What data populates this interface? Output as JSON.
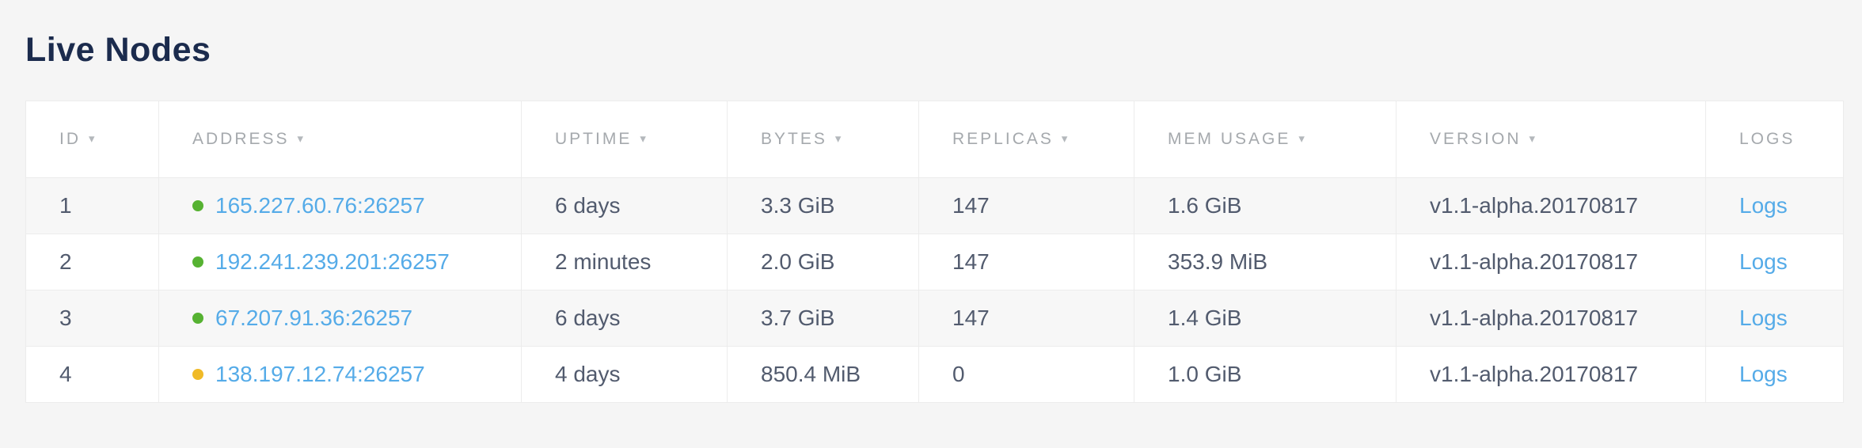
{
  "page": {
    "title": "Live Nodes"
  },
  "table": {
    "sort_icon": "▾",
    "columns": [
      {
        "key": "id",
        "label": "ID",
        "sortable": true
      },
      {
        "key": "address",
        "label": "ADDRESS",
        "sortable": true
      },
      {
        "key": "uptime",
        "label": "UPTIME",
        "sortable": true
      },
      {
        "key": "bytes",
        "label": "BYTES",
        "sortable": true
      },
      {
        "key": "replicas",
        "label": "REPLICAS",
        "sortable": true
      },
      {
        "key": "mem_usage",
        "label": "MEM USAGE",
        "sortable": true
      },
      {
        "key": "version",
        "label": "VERSION",
        "sortable": true
      },
      {
        "key": "logs",
        "label": "LOGS",
        "sortable": false
      }
    ],
    "rows": [
      {
        "id": "1",
        "status": "healthy",
        "status_color": "#56b232",
        "address": "165.227.60.76:26257",
        "uptime": "6 days",
        "bytes": "3.3 GiB",
        "replicas": "147",
        "mem_usage": "1.6 GiB",
        "version": "v1.1-alpha.20170817",
        "logs_label": "Logs"
      },
      {
        "id": "2",
        "status": "healthy",
        "status_color": "#56b232",
        "address": "192.241.239.201:26257",
        "uptime": "2 minutes",
        "bytes": "2.0 GiB",
        "replicas": "147",
        "mem_usage": "353.9 MiB",
        "version": "v1.1-alpha.20170817",
        "logs_label": "Logs"
      },
      {
        "id": "3",
        "status": "healthy",
        "status_color": "#56b232",
        "address": "67.207.91.36:26257",
        "uptime": "6 days",
        "bytes": "3.7 GiB",
        "replicas": "147",
        "mem_usage": "1.4 GiB",
        "version": "v1.1-alpha.20170817",
        "logs_label": "Logs"
      },
      {
        "id": "4",
        "status": "warning",
        "status_color": "#f0ba27",
        "address": "138.197.12.74:26257",
        "uptime": "4 days",
        "bytes": "850.4 MiB",
        "replicas": "0",
        "mem_usage": "1.0 GiB",
        "version": "v1.1-alpha.20170817",
        "logs_label": "Logs"
      }
    ],
    "colors": {
      "title_text": "#1b2b4d",
      "header_text": "#a5a9ad",
      "cell_text": "#525b6e",
      "link": "#55abe8",
      "healthy_dot": "#56b232",
      "warning_dot": "#f0ba27",
      "row_alt_bg": "#f7f7f7",
      "border": "#ececec",
      "page_bg": "#f5f5f5"
    }
  }
}
